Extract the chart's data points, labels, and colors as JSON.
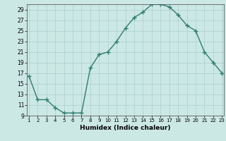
{
  "x": [
    1,
    2,
    3,
    4,
    5,
    6,
    7,
    8,
    9,
    10,
    11,
    12,
    13,
    14,
    15,
    16,
    17,
    18,
    19,
    20,
    21,
    22,
    23
  ],
  "y": [
    16.5,
    12,
    12,
    10.5,
    9.5,
    9.5,
    9.5,
    18,
    20.5,
    21,
    23,
    25.5,
    27.5,
    28.5,
    30,
    30,
    29.5,
    28,
    26,
    25,
    21,
    19,
    17
  ],
  "xlabel": "Humidex (Indice chaleur)",
  "xlim": [
    1,
    23
  ],
  "ylim": [
    9,
    30
  ],
  "yticks": [
    9,
    11,
    13,
    15,
    17,
    19,
    21,
    23,
    25,
    27,
    29
  ],
  "xticks": [
    1,
    2,
    3,
    4,
    5,
    6,
    7,
    8,
    9,
    10,
    11,
    12,
    13,
    14,
    15,
    16,
    17,
    18,
    19,
    20,
    21,
    22,
    23
  ],
  "line_color": "#2d7d6e",
  "bg_color": "#cce8e5",
  "grid_color": "#aacfcc"
}
